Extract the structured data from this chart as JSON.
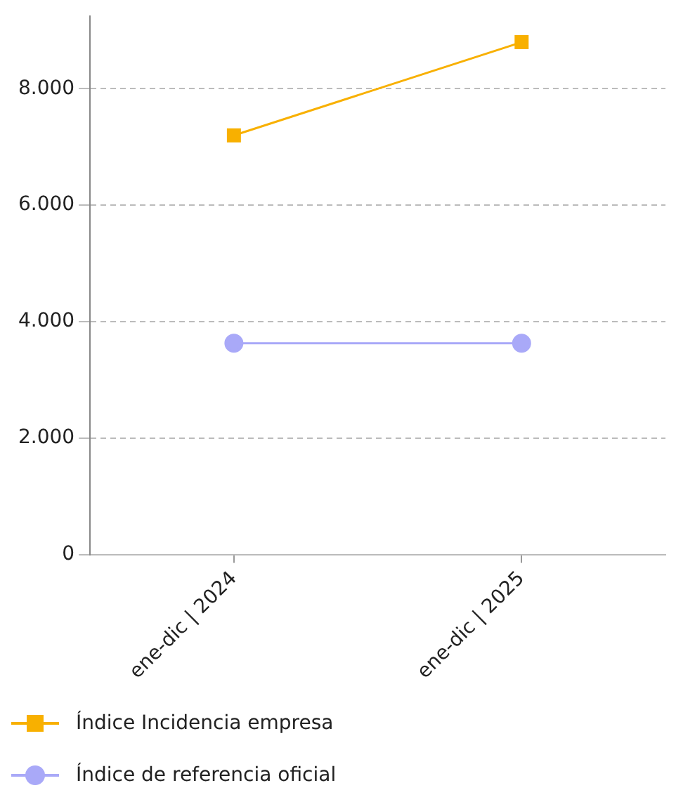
{
  "chart_data": {
    "type": "line",
    "categories": [
      "ene-dic | 2024",
      "ene-dic | 2025"
    ],
    "series": [
      {
        "name": "Índice Incidencia empresa",
        "color": "#f8b000",
        "values": [
          7200,
          8800
        ],
        "marker": "square"
      },
      {
        "name": "Índice de referencia oficial",
        "color": "#a9a9f8",
        "values": [
          3630,
          3630
        ],
        "marker": "circle"
      }
    ],
    "ylim": [
      0,
      9250
    ],
    "yticks": [
      {
        "value": 0,
        "label": "0"
      },
      {
        "value": 2000,
        "label": "2.000"
      },
      {
        "value": 4000,
        "label": "4.000"
      },
      {
        "value": 6000,
        "label": "6.000"
      },
      {
        "value": 8000,
        "label": "8.000"
      }
    ],
    "grid": "y",
    "legend": "bottom"
  }
}
